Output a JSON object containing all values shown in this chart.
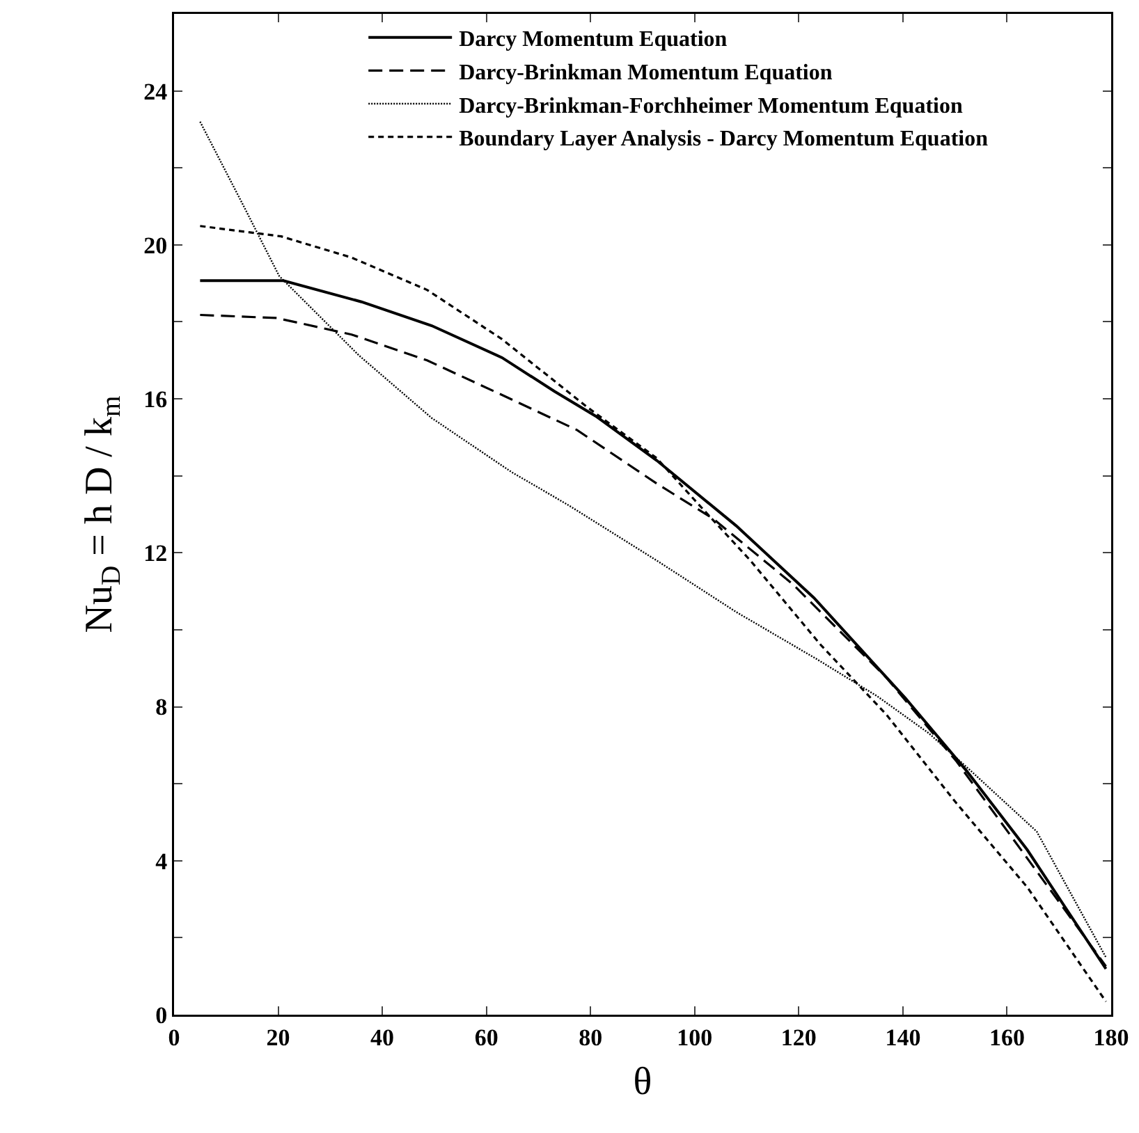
{
  "chart_data": {
    "type": "line",
    "xlabel": "θ",
    "ylabel": "Nu$_{D}$ = h D / k$_{m}$",
    "xlim": [
      0,
      180
    ],
    "xticks": [
      0,
      20,
      40,
      60,
      80,
      100,
      120,
      140,
      160,
      180
    ],
    "ylim": [
      0,
      26
    ],
    "yticks": [
      0,
      {
        "value": 2,
        "label": null
      },
      4,
      {
        "value": 6,
        "label": null
      },
      8,
      {
        "value": 10,
        "label": null
      },
      12,
      {
        "value": 14,
        "label": null
      },
      16,
      {
        "value": 18,
        "label": null
      },
      20,
      {
        "value": 22,
        "label": null
      },
      24
    ],
    "grid": false,
    "legend": "top",
    "marker": "none",
    "series": [
      {
        "name": "Darcy Momentum Equation",
        "color": "#000000",
        "line_style": "solid",
        "x": [
          5,
          21,
          36,
          49.5,
          63,
          73,
          81,
          92.7,
          108,
          122.9,
          140.5,
          152.2,
          163.9,
          179
        ],
        "values": [
          19.07,
          19.07,
          18.52,
          17.9,
          17.07,
          16.2,
          15.55,
          14.4,
          12.7,
          10.83,
          8.22,
          6.34,
          4.28,
          1.19
        ]
      },
      {
        "name": "Darcy-Brinkman Momentum Equation",
        "color": "#000000",
        "line_style": "dashed",
        "x": [
          5,
          19.7,
          34.1,
          48.6,
          63,
          77.4,
          92.7,
          103.5,
          118.8,
          136.8,
          150.3,
          179
        ],
        "values": [
          18.18,
          18.1,
          17.67,
          17.0,
          16.1,
          15.19,
          13.8,
          12.89,
          11.19,
          8.76,
          6.58,
          1.26
        ]
      },
      {
        "name": "Darcy-Brinkman-Forchheimer Momentum Equation",
        "color": "#000000",
        "line_style": "dotted",
        "x": [
          5,
          13.4,
          20.2,
          35.5,
          49.5,
          64.8,
          75.6,
          92.7,
          108,
          123.3,
          135,
          145,
          153,
          165.7,
          179
        ],
        "values": [
          23.2,
          21.0,
          19.19,
          17.13,
          15.5,
          14.1,
          13.25,
          11.8,
          10.46,
          9.25,
          8.28,
          7.31,
          6.34,
          4.76,
          1.49
        ]
      },
      {
        "name": "Boundary Layer Analysis - Darcy Momentum Equation",
        "color": "#000000",
        "line_style": "dashed",
        "x": [
          5,
          20.6,
          34.1,
          48.6,
          63,
          79.2,
          92.7,
          100.8,
          110.7,
          124.2,
          136.8,
          150.3,
          163.9,
          179
        ],
        "values": [
          20.49,
          20.22,
          19.67,
          18.83,
          17.55,
          15.8,
          14.46,
          13.25,
          11.8,
          9.61,
          7.8,
          5.49,
          3.31,
          0.34
        ]
      }
    ]
  }
}
